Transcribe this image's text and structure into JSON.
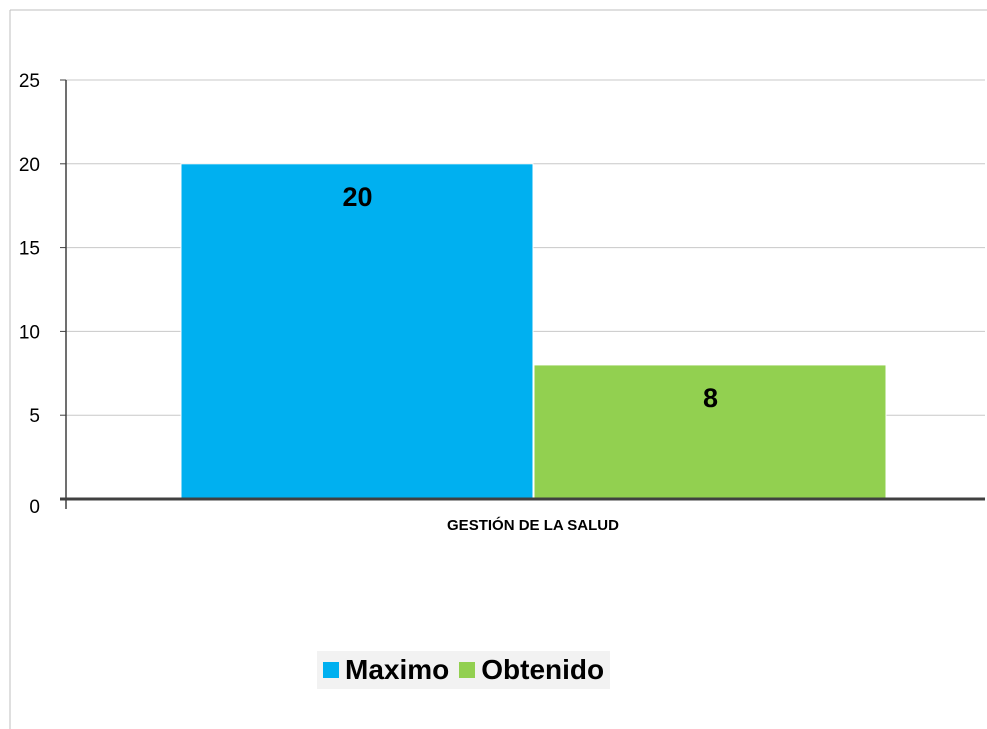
{
  "chart_data": {
    "type": "bar",
    "title": "",
    "xlabel": "",
    "ylabel": "",
    "categories": [
      "GESTIÓN DE LA SALUD"
    ],
    "series": [
      {
        "name": "Maximo",
        "values": [
          20
        ],
        "color": "#00b0f0"
      },
      {
        "name": "Obtenido",
        "values": [
          8
        ],
        "color": "#92d050"
      }
    ],
    "ylim": [
      0,
      25
    ],
    "yticks": [
      "0",
      "5",
      "10",
      "15",
      "20",
      "25"
    ],
    "data_labels": [
      "20",
      "8"
    ],
    "grid": true,
    "legend_position": "bottom"
  },
  "colors": {
    "gridline": "#c8c8c8",
    "axis": "#404040",
    "frame": "#bfbfbf",
    "legend_background": "#f2f2f2"
  }
}
